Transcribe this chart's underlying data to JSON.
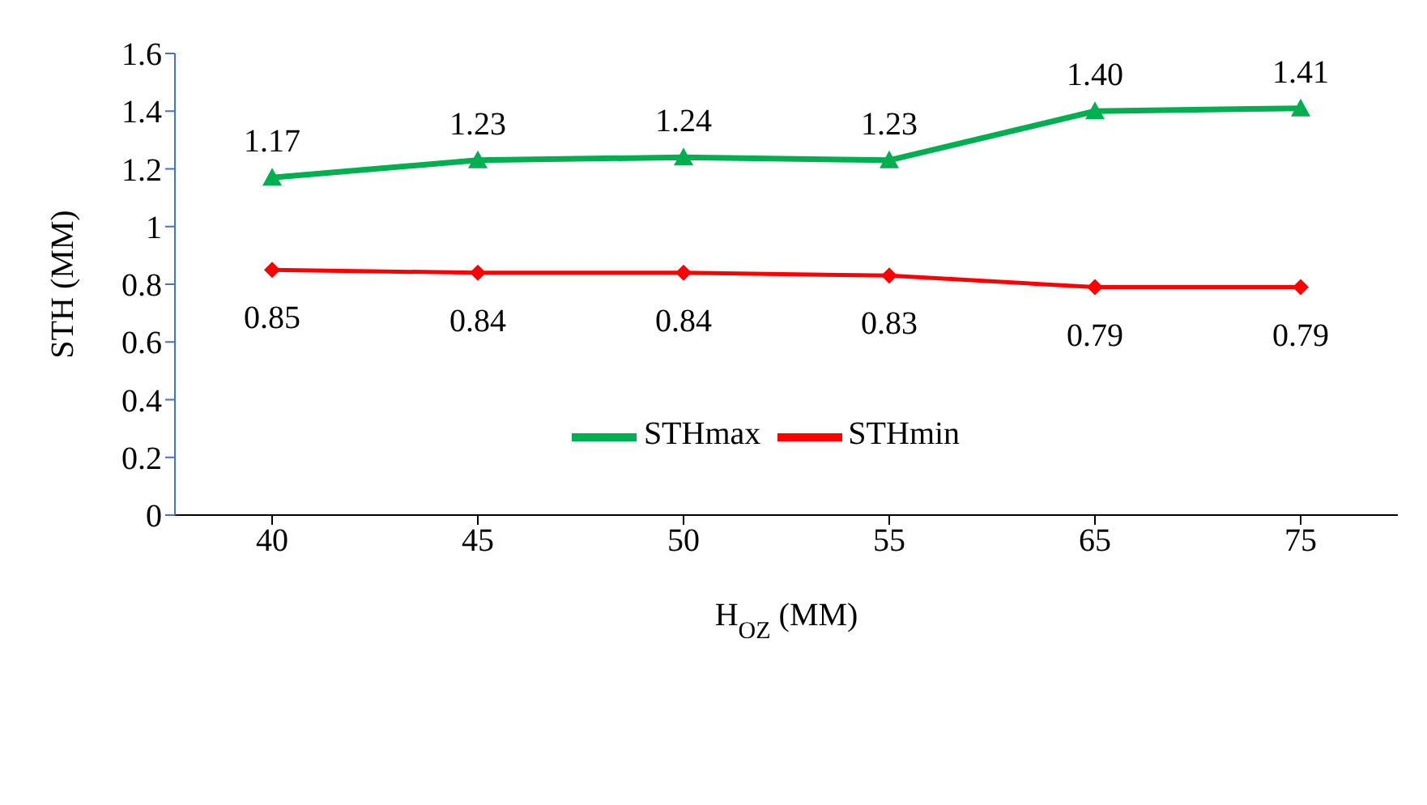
{
  "chart_data": {
    "type": "line",
    "xlabel": "H$_{OZ}$ (MM)",
    "ylabel": "STH (MM)",
    "categories": [
      "40",
      "45",
      "50",
      "55",
      "65",
      "75"
    ],
    "series": [
      {
        "name": "STHmax",
        "color": "#00b050",
        "marker": "triangle",
        "values": [
          1.17,
          1.23,
          1.24,
          1.23,
          1.4,
          1.41
        ],
        "value_labels": [
          "1.17",
          "1.23",
          "1.24",
          "1.23",
          "1.40",
          "1.41"
        ]
      },
      {
        "name": "STHmin",
        "color": "#ff0000",
        "marker": "diamond",
        "values": [
          0.85,
          0.84,
          0.84,
          0.83,
          0.79,
          0.79
        ],
        "value_labels": [
          "0.85",
          "0.84",
          "0.84",
          "0.83",
          "0.79",
          "0.79"
        ]
      }
    ],
    "ylim": [
      0,
      1.6
    ],
    "yticks": [
      0,
      0.2,
      0.4,
      0.6,
      0.8,
      1,
      1.2,
      1.4,
      1.6
    ],
    "grid": false,
    "legend": "center"
  }
}
